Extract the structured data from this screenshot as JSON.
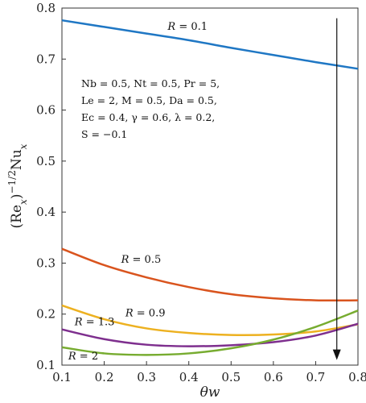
{
  "chart_data": {
    "type": "line",
    "title": "",
    "xlabel": "θw",
    "ylabel": "(Re_x)^(-1/2) Nu_x",
    "xlim": [
      0.1,
      0.8
    ],
    "ylim": [
      0.1,
      0.8
    ],
    "x_ticks": [
      "0.1",
      "0.2",
      "0.3",
      "0.4",
      "0.5",
      "0.6",
      "0.7",
      "0.8"
    ],
    "y_ticks": [
      "0.1",
      "0.2",
      "0.3",
      "0.4",
      "0.5",
      "0.6",
      "0.7",
      "0.8"
    ],
    "grid": false,
    "x": [
      0.1,
      0.2,
      0.3,
      0.4,
      0.5,
      0.6,
      0.7,
      0.8
    ],
    "series": [
      {
        "name": "R = 0.1",
        "color": "#1f77c4",
        "values": [
          0.776,
          0.763,
          0.75,
          0.737,
          0.722,
          0.708,
          0.694,
          0.681
        ]
      },
      {
        "name": "R = 0.5",
        "color": "#d9541e",
        "values": [
          0.328,
          0.296,
          0.272,
          0.253,
          0.239,
          0.231,
          0.227,
          0.227
        ]
      },
      {
        "name": "R = 0.9",
        "color": "#edb120",
        "values": [
          0.217,
          0.19,
          0.172,
          0.163,
          0.159,
          0.16,
          0.166,
          0.18
        ]
      },
      {
        "name": "R = 1.3",
        "color": "#7e2f8e",
        "values": [
          0.17,
          0.151,
          0.14,
          0.137,
          0.139,
          0.145,
          0.158,
          0.181
        ]
      },
      {
        "name": "R = 2",
        "color": "#77ac30",
        "values": [
          0.135,
          0.123,
          0.12,
          0.123,
          0.133,
          0.15,
          0.175,
          0.207
        ]
      }
    ],
    "annotation_lines": [
      "Nb = 0.5, Nt = 0.5, Pr = 5,",
      "Le = 2, M = 0.5, Da = 0.5,",
      "Ec = 0.4, γ = 0.6, λ = 0.2,",
      "S = −0.1"
    ],
    "arrow": {
      "x": 0.75,
      "y_from": 0.78,
      "y_to": 0.11,
      "direction": "down"
    }
  }
}
